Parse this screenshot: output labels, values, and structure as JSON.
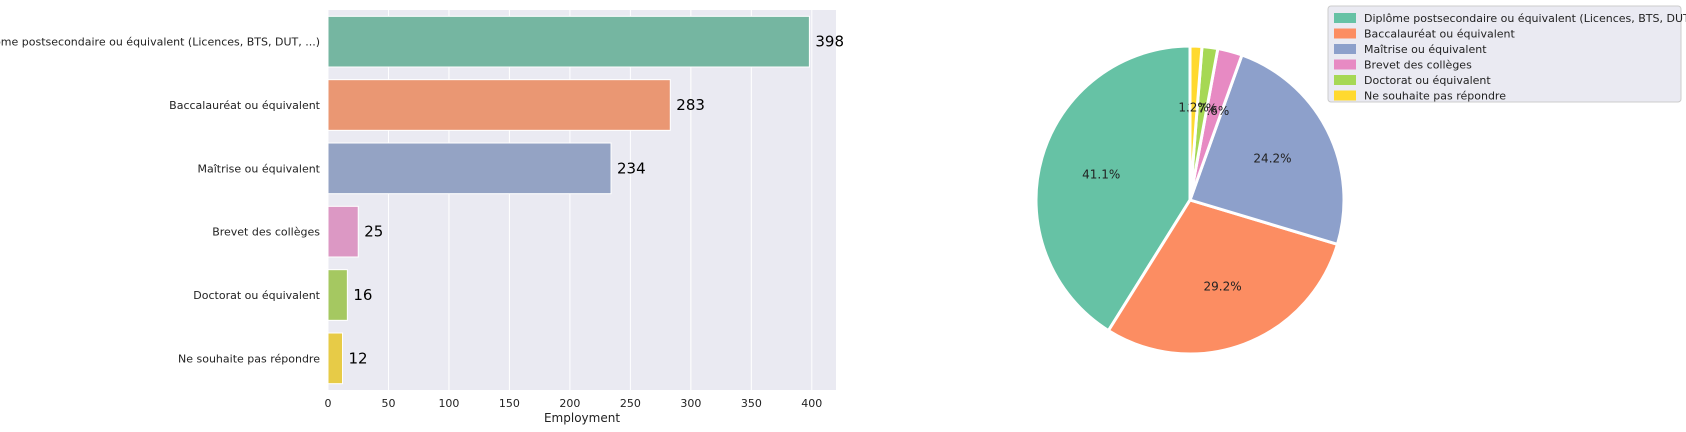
{
  "chart_data": [
    {
      "type": "bar",
      "orientation": "horizontal",
      "categories": [
        "Diplôme postsecondaire ou équivalent (Licences, BTS, DUT, ...)",
        "Baccalauréat ou équivalent",
        "Maîtrise ou équivalent",
        "Brevet des collèges",
        "Doctorat ou équivalent",
        "Ne souhaite pas répondre"
      ],
      "values": [
        398,
        283,
        234,
        25,
        16,
        12
      ],
      "data_labels": [
        "398",
        "283",
        "234",
        "25",
        "16",
        "12"
      ],
      "colors": [
        "#75b6a1",
        "#ea9773",
        "#94a3c4",
        "#dc98c4",
        "#a5c861",
        "#e7cb47"
      ],
      "xlabel": "Employment",
      "xlim": [
        0,
        420
      ],
      "x_ticks": [
        0,
        50,
        100,
        150,
        200,
        250,
        300,
        350,
        400
      ],
      "x_tick_labels": [
        "0",
        "50",
        "100",
        "150",
        "200",
        "250",
        "300",
        "350",
        "400"
      ],
      "grid": true,
      "background": "#eaeaf2"
    },
    {
      "type": "pie",
      "labels": [
        "Diplôme postsecondaire ou équivalent (Licences, BTS, DUT, ...)",
        "Baccalauréat ou équivalent",
        "Maîtrise ou équivalent",
        "Brevet des collèges",
        "Doctorat ou équivalent",
        "Ne souhaite pas répondre"
      ],
      "values": [
        398,
        283,
        234,
        25,
        16,
        12
      ],
      "percent_labels": [
        "41.1%",
        "29.2%",
        "24.2%",
        "2.6%",
        "1.7%",
        "1.2%"
      ],
      "colors": [
        "#66c2a5",
        "#fc8d62",
        "#8da0cb",
        "#e78ac3",
        "#a6d854",
        "#ffd92f"
      ],
      "start_angle_deg": 90,
      "direction": "counterclockwise",
      "legend_position": "top-right"
    }
  ]
}
